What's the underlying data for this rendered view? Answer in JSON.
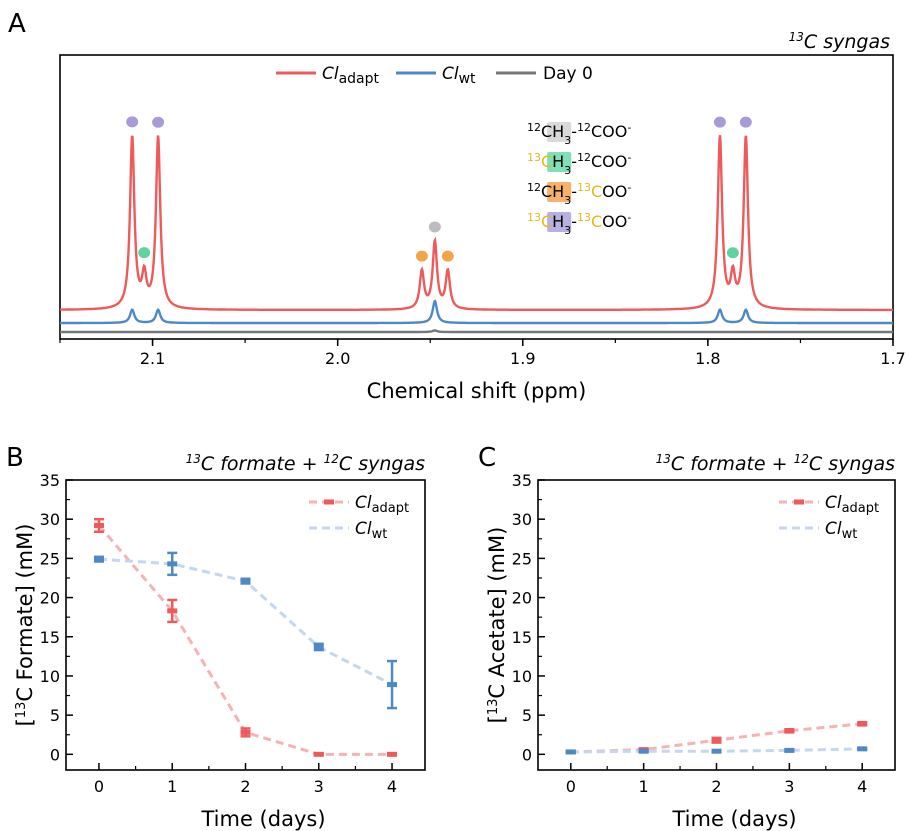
{
  "colors": {
    "adapt": "#ee5a5a",
    "wt": "#4f88c6",
    "day0": "#777777",
    "purple": "#a99bd8",
    "green": "#5fd3a0",
    "orange": "#f3a448",
    "grey_dot": "#bdbdbd",
    "gold": "#e8b71a",
    "adapt_light": "#f5b3b3",
    "wt_light": "#c4d7ee"
  },
  "panels": {
    "A": {
      "letter": "A",
      "title": "13C syngas",
      "title_sup": "13",
      "title_rest": "C syngas"
    },
    "B": {
      "letter": "B",
      "title_parts": [
        "13",
        "C formate + ",
        "12",
        "C syngas"
      ]
    },
    "C": {
      "letter": "C",
      "title_parts": [
        "13",
        "C formate + ",
        "12",
        "C syngas"
      ]
    }
  },
  "legend": {
    "adapt_main": "Cl",
    "adapt_sub": "adapt",
    "wt_main": "Cl",
    "wt_sub": "wt",
    "day0": "Day 0"
  },
  "species": [
    {
      "parts": [
        [
          "12",
          "sup",
          "#000"
        ],
        [
          "C",
          "txt",
          "#000"
        ],
        [
          "H",
          "txt",
          "#000"
        ],
        [
          "3",
          "sub",
          "#000"
        ],
        [
          "-",
          "txt",
          "#000"
        ],
        [
          "12",
          "sup",
          "#000"
        ],
        [
          "COO",
          "txt",
          "#000"
        ],
        [
          "-",
          "sup",
          "#000"
        ]
      ],
      "highlight": "#d9d9d9"
    },
    {
      "parts": [
        [
          "13",
          "sup",
          "#e8b71a"
        ],
        [
          "C",
          "txt",
          "#e8b71a"
        ],
        [
          "H",
          "txt",
          "#000"
        ],
        [
          "3",
          "sub",
          "#000"
        ],
        [
          "-",
          "txt",
          "#000"
        ],
        [
          "12",
          "sup",
          "#000"
        ],
        [
          "COO",
          "txt",
          "#000"
        ],
        [
          "-",
          "sup",
          "#000"
        ]
      ],
      "highlight": "#7fe0b8"
    },
    {
      "parts": [
        [
          "12",
          "sup",
          "#000"
        ],
        [
          "C",
          "txt",
          "#000"
        ],
        [
          "H",
          "txt",
          "#000"
        ],
        [
          "3",
          "sub",
          "#000"
        ],
        [
          "-",
          "txt",
          "#000"
        ],
        [
          "13",
          "sup",
          "#e8b71a"
        ],
        [
          "C",
          "txt",
          "#e8b71a"
        ],
        [
          "OO",
          "txt",
          "#000"
        ],
        [
          "-",
          "sup",
          "#000"
        ]
      ],
      "highlight": "#f6b26b"
    },
    {
      "parts": [
        [
          "13",
          "sup",
          "#e8b71a"
        ],
        [
          "C",
          "txt",
          "#e8b71a"
        ],
        [
          "H",
          "txt",
          "#000"
        ],
        [
          "3",
          "sub",
          "#000"
        ],
        [
          "-",
          "txt",
          "#000"
        ],
        [
          "13",
          "sup",
          "#e8b71a"
        ],
        [
          "C",
          "txt",
          "#e8b71a"
        ],
        [
          "OO",
          "txt",
          "#000"
        ],
        [
          "-",
          "sup",
          "#000"
        ]
      ],
      "highlight": "#b8b0e0"
    }
  ],
  "chart_data": [
    {
      "id": "A",
      "type": "line",
      "title": "13C syngas",
      "xlabel": "Chemical shift (ppm)",
      "xlim": [
        2.15,
        1.7
      ],
      "x_ticks": [
        2.1,
        2.0,
        1.9,
        1.8,
        1.7
      ],
      "x_tick_labels": [
        "2.1",
        "2.0",
        "1.9",
        "1.8",
        "1.7"
      ],
      "series": [
        {
          "name": "Cladapt",
          "peaks": [
            {
              "ppm": 2.111,
              "height": 1.0
            },
            {
              "ppm": 2.097,
              "height": 1.0
            },
            {
              "ppm": 2.1045,
              "height": 0.18
            },
            {
              "ppm": 1.9545,
              "height": 0.22
            },
            {
              "ppm": 1.9475,
              "height": 0.39
            },
            {
              "ppm": 1.9405,
              "height": 0.22
            },
            {
              "ppm": 1.7935,
              "height": 1.0
            },
            {
              "ppm": 1.7795,
              "height": 1.0
            },
            {
              "ppm": 1.7865,
              "height": 0.18
            }
          ]
        },
        {
          "name": "Clwt",
          "peaks": [
            {
              "ppm": 2.111,
              "height": 0.12
            },
            {
              "ppm": 2.097,
              "height": 0.12
            },
            {
              "ppm": 1.9475,
              "height": 0.2
            },
            {
              "ppm": 1.7935,
              "height": 0.12
            },
            {
              "ppm": 1.7795,
              "height": 0.12
            }
          ]
        },
        {
          "name": "Day 0",
          "peaks": [
            {
              "ppm": 1.9475,
              "height": 0.04
            }
          ]
        }
      ],
      "markers": [
        {
          "ppm": 2.111,
          "color": "purple"
        },
        {
          "ppm": 2.097,
          "color": "purple"
        },
        {
          "ppm": 2.1045,
          "color": "green"
        },
        {
          "ppm": 1.9545,
          "color": "orange"
        },
        {
          "ppm": 1.9475,
          "color": "grey_dot"
        },
        {
          "ppm": 1.9405,
          "color": "orange"
        },
        {
          "ppm": 1.7935,
          "color": "purple"
        },
        {
          "ppm": 1.7795,
          "color": "purple"
        },
        {
          "ppm": 1.7865,
          "color": "green"
        }
      ]
    },
    {
      "id": "B",
      "type": "line",
      "title": "13C formate + 12C syngas",
      "xlabel": "Time (days)",
      "ylabel": "[13C Formate] (mM)",
      "x": [
        0,
        1,
        2,
        3,
        4
      ],
      "xlim": [
        -0.45,
        4.45
      ],
      "ylim": [
        -2,
        35
      ],
      "y_ticks": [
        0,
        5,
        10,
        15,
        20,
        25,
        30,
        35
      ],
      "series": [
        {
          "name": "Cladapt",
          "values": [
            29.2,
            18.3,
            2.8,
            0.0,
            0.0
          ],
          "errors": [
            0.8,
            1.4,
            0.5,
            0.1,
            0.1
          ]
        },
        {
          "name": "Clwt",
          "values": [
            24.9,
            24.3,
            22.1,
            13.7,
            8.9
          ],
          "errors": [
            0.3,
            1.4,
            0.3,
            0.4,
            3.0
          ]
        }
      ]
    },
    {
      "id": "C",
      "type": "line",
      "title": "13C formate + 12C syngas",
      "xlabel": "Time (days)",
      "ylabel": "[13C Acetate] (mM)",
      "x": [
        0,
        1,
        2,
        3,
        4
      ],
      "xlim": [
        -0.45,
        4.45
      ],
      "ylim": [
        -2,
        35
      ],
      "y_ticks": [
        0,
        5,
        10,
        15,
        20,
        25,
        30,
        35
      ],
      "series": [
        {
          "name": "Cladapt",
          "values": [
            0.3,
            0.6,
            1.8,
            3.0,
            3.9
          ],
          "errors": [
            0.1,
            0.1,
            0.3,
            0.2,
            0.2
          ]
        },
        {
          "name": "Clwt",
          "values": [
            0.3,
            0.4,
            0.4,
            0.5,
            0.7
          ],
          "errors": [
            0.1,
            0.1,
            0.1,
            0.1,
            0.1
          ]
        }
      ]
    }
  ]
}
